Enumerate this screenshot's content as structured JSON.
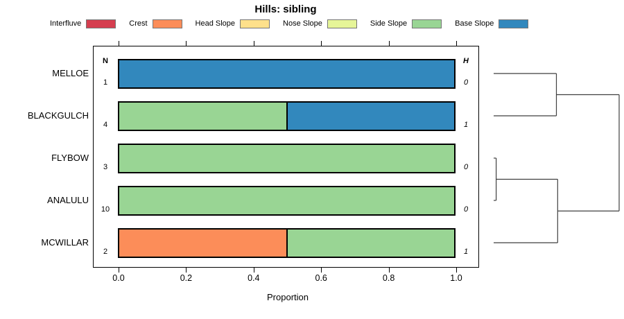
{
  "title": "Hills: sibling",
  "columns": {
    "n_header": "N",
    "h_header": "H"
  },
  "axis": {
    "xlabel": "Proportion",
    "ticks": [
      "0.0",
      "0.2",
      "0.4",
      "0.6",
      "0.8",
      "1.0"
    ],
    "range": [
      0,
      1
    ]
  },
  "legend": {
    "items": [
      {
        "label": "Interfluve",
        "color": "#D53E4F"
      },
      {
        "label": "Crest",
        "color": "#FC8D59"
      },
      {
        "label": "Head Slope",
        "color": "#FEE08B"
      },
      {
        "label": "Nose Slope",
        "color": "#E6F598"
      },
      {
        "label": "Side Slope",
        "color": "#99D594"
      },
      {
        "label": "Base Slope",
        "color": "#3288BD"
      }
    ]
  },
  "chart_data": {
    "type": "bar",
    "orientation": "horizontal",
    "stacked": true,
    "title": "Hills: sibling",
    "xlabel": "Proportion",
    "xlim": [
      0,
      1
    ],
    "grid": false,
    "legend_position": "top",
    "categories": [
      "MELLOE",
      "BLACKGULCH",
      "FLYBOW",
      "ANALULU",
      "MCWILLAR"
    ],
    "classes": [
      "Interfluve",
      "Crest",
      "Head Slope",
      "Nose Slope",
      "Side Slope",
      "Base Slope"
    ],
    "class_colors": {
      "Interfluve": "#D53E4F",
      "Crest": "#FC8D59",
      "Head Slope": "#FEE08B",
      "Nose Slope": "#E6F598",
      "Side Slope": "#99D594",
      "Base Slope": "#3288BD"
    },
    "rows": [
      {
        "label": "MELLOE",
        "n": "1",
        "h": "0",
        "segments": [
          {
            "class": "Base Slope",
            "value": 1.0
          }
        ]
      },
      {
        "label": "BLACKGULCH",
        "n": "4",
        "h": "1",
        "segments": [
          {
            "class": "Side Slope",
            "value": 0.5
          },
          {
            "class": "Base Slope",
            "value": 0.5
          }
        ]
      },
      {
        "label": "FLYBOW",
        "n": "3",
        "h": "0",
        "segments": [
          {
            "class": "Side Slope",
            "value": 1.0
          }
        ]
      },
      {
        "label": "ANALULU",
        "n": "10",
        "h": "0",
        "segments": [
          {
            "class": "Side Slope",
            "value": 1.0
          }
        ]
      },
      {
        "label": "MCWILLAR",
        "n": "2",
        "h": "1",
        "segments": [
          {
            "class": "Crest",
            "value": 0.5
          },
          {
            "class": "Side Slope",
            "value": 0.5
          }
        ]
      }
    ],
    "dendrogram": {
      "leaf_order": [
        "MELLOE",
        "BLACKGULCH",
        "FLYBOW",
        "ANALULU",
        "MCWILLAR"
      ],
      "links": [
        {
          "a": "leaf:0",
          "b": "leaf:1",
          "height": 0.5
        },
        {
          "a": "leaf:2",
          "b": "leaf:3",
          "height": 0.02
        },
        {
          "a": "node:1",
          "b": "leaf:4",
          "height": 0.51
        },
        {
          "a": "node:0",
          "b": "node:2",
          "height": 1.0
        }
      ]
    }
  }
}
